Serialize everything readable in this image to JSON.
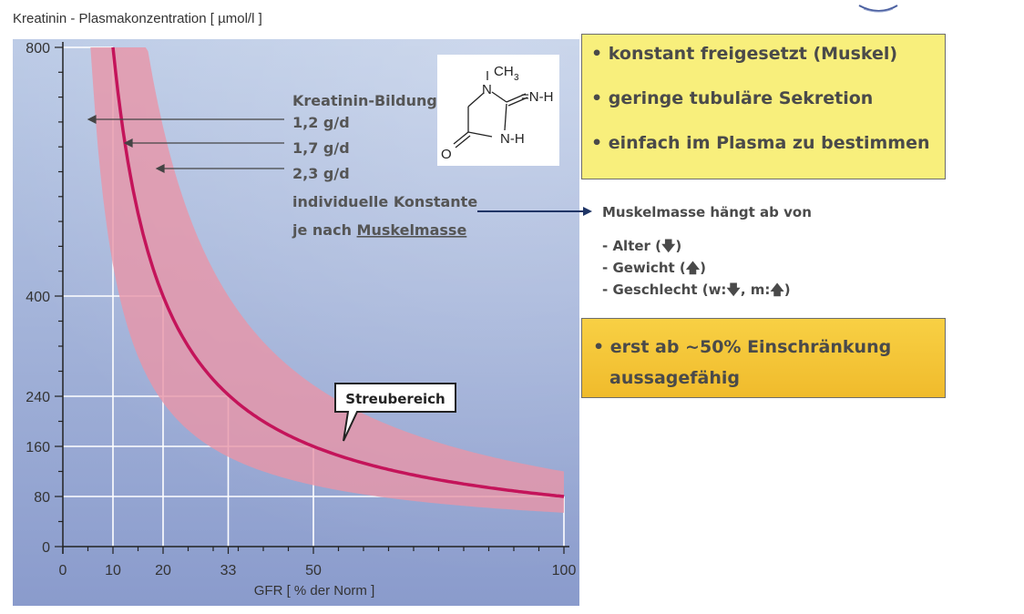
{
  "chart_data": {
    "type": "line",
    "ylabel": "Kreatinin - Plasmakonzentration [ µmol/l ]",
    "xlabel": "GFR [ % der Norm ]",
    "x_ticks": [
      0,
      10,
      20,
      33,
      50,
      100
    ],
    "y_ticks": [
      0,
      80,
      160,
      240,
      400,
      800
    ],
    "xlim": [
      0,
      100
    ],
    "ylim": [
      0,
      800
    ],
    "y_scale": "piecewise",
    "grid_lines": [
      {
        "x": 10,
        "y": 800
      },
      {
        "x": 20,
        "y": 400
      },
      {
        "x": 33,
        "y": 240
      },
      {
        "x": 50,
        "y": 160
      },
      {
        "x": 100,
        "y": 80
      }
    ],
    "series": [
      {
        "x": [
          10,
          20,
          33,
          50,
          100
        ],
        "y": [
          800,
          400,
          240,
          160,
          80
        ]
      }
    ],
    "band": {
      "x_start": 5,
      "x_end": 100
    },
    "formation_label": "Kreatinin-Bildung",
    "formation_rates": [
      "1,2 g/d",
      "1,7 g/d",
      "2,3 g/d"
    ],
    "constant_line1": "individuelle Konstante",
    "constant_line2_prefix": "je nach ",
    "constant_line2_link": "Muskelmasse",
    "band_label": "Streubereich",
    "molecule": {
      "ch3": "CH",
      "ch3_sub": "3",
      "n1": "N",
      "nh_imine": "=N-H",
      "nh": "N-H",
      "o": "O"
    }
  },
  "facts": [
    "• konstant freigesetzt (Muskel)",
    "• geringe tubuläre Sekretion",
    "• einfach im Plasma zu bestimmen"
  ],
  "muscle_mass": {
    "title": "Muskelmasse hängt ab von",
    "factors": [
      "- Alter  (🡇)",
      "- Gewicht (🡅)",
      "- Geschlecht  (w:🡇, m:🡅)"
    ]
  },
  "note": {
    "line1": "• erst ab ~50% Einschränkung",
    "line2": "aussagefähig"
  }
}
